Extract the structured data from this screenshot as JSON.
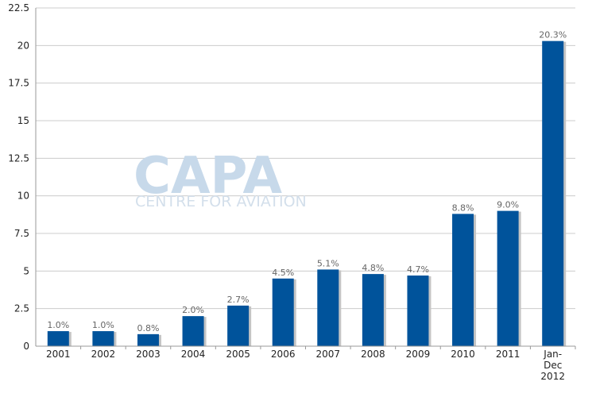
{
  "watermark": {
    "name": "CAPA",
    "subtitle": "CENTRE FOR AVIATION"
  },
  "chart_data": {
    "type": "bar",
    "title": "",
    "xlabel": "",
    "ylabel": "",
    "ylim": [
      0,
      22.5
    ],
    "yticks": [
      "0",
      "2.5",
      "5",
      "7.5",
      "10",
      "12.5",
      "15",
      "17.5",
      "20",
      "22.5"
    ],
    "categories": [
      "2001",
      "2002",
      "2003",
      "2004",
      "2005",
      "2006",
      "2007",
      "2008",
      "2009",
      "2010",
      "2011",
      "Jan-Dec 2012"
    ],
    "values": [
      1.0,
      1.0,
      0.8,
      2.0,
      2.7,
      4.5,
      5.1,
      4.8,
      4.7,
      8.8,
      9.0,
      20.3
    ],
    "data_labels": [
      "1.0%",
      "1.0%",
      "0.8%",
      "2.0%",
      "2.7%",
      "4.5%",
      "5.1%",
      "4.8%",
      "4.7%",
      "8.8%",
      "9.0%",
      "20.3%"
    ],
    "colors": {
      "bar": "#00539b",
      "shadow": "#c4c4c4",
      "grid": "#cccccc",
      "axis": "#999999"
    },
    "grid": true,
    "legend": "none"
  }
}
